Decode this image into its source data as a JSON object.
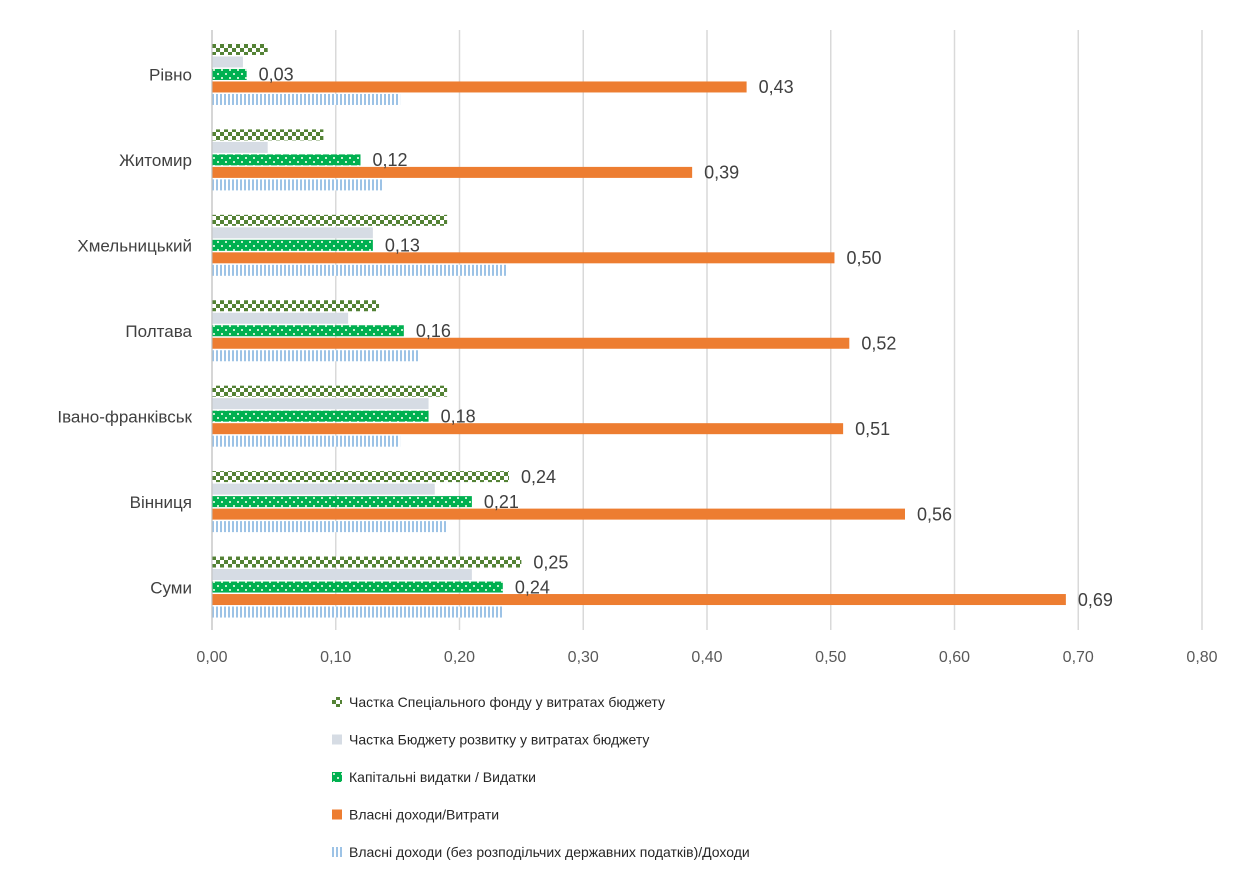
{
  "chart_data": {
    "type": "bar",
    "orientation": "horizontal",
    "categories": [
      "Суми",
      "Вінниця",
      "Івано-франківськ",
      "Полтава",
      "Хмельницький",
      "Житомир",
      "Рівно"
    ],
    "series": [
      {
        "name": "Частка Спеціального фонду у витратах бюджету",
        "values": [
          0.25,
          0.24,
          0.19,
          0.135,
          0.19,
          0.09,
          0.045
        ],
        "data_labels": [
          "0,25",
          "0,24",
          "",
          "",
          "",
          "",
          ""
        ],
        "color": "#548235",
        "pattern": "checker"
      },
      {
        "name": "Частка Бюджету розвитку у витратах бюджету",
        "values": [
          0.21,
          0.18,
          0.175,
          0.11,
          0.13,
          0.045,
          0.025
        ],
        "data_labels": [
          "",
          "",
          "",
          "",
          "",
          "",
          ""
        ],
        "color": "#d6dce4",
        "pattern": "solid"
      },
      {
        "name": "Капітальні видатки / Видатки",
        "values": [
          0.235,
          0.21,
          0.175,
          0.155,
          0.13,
          0.12,
          0.028
        ],
        "data_labels": [
          "0,24",
          "0,21",
          "0,18",
          "0,16",
          "0,13",
          "0,12",
          "0,03"
        ],
        "color": "#00b050",
        "pattern": "checker-light"
      },
      {
        "name": "Власні доходи/Витрати",
        "values": [
          0.69,
          0.56,
          0.51,
          0.515,
          0.503,
          0.388,
          0.432
        ],
        "data_labels": [
          "0,69",
          "0,56",
          "0,51",
          "0,52",
          "0,50",
          "0,39",
          "0,43"
        ],
        "color": "#ed7d31",
        "pattern": "solid"
      },
      {
        "name": "Власні доходи (без розподільчих державних податків)/Доходи",
        "values": [
          0.235,
          0.19,
          0.152,
          0.168,
          0.238,
          0.138,
          0.152
        ],
        "data_labels": [
          "",
          "",
          "",
          "",
          "",
          "",
          ""
        ],
        "color": "#9dc3e6",
        "pattern": "vertical-stripes"
      }
    ],
    "xlim": [
      0,
      0.8
    ],
    "x_ticks": [
      0,
      0.1,
      0.2,
      0.3,
      0.4,
      0.5,
      0.6,
      0.7,
      0.8
    ],
    "x_tick_labels": [
      "0,00",
      "0,10",
      "0,20",
      "0,30",
      "0,40",
      "0,50",
      "0,60",
      "0,70",
      "0,80"
    ],
    "grid": "vertical",
    "legend": "bottom",
    "title": "",
    "xlabel": "",
    "ylabel": ""
  }
}
